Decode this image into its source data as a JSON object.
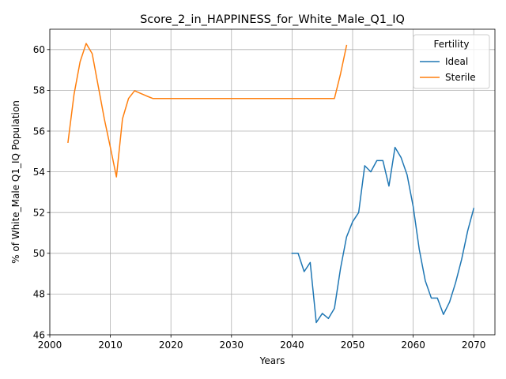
{
  "chart_data": {
    "type": "line",
    "title": "Score_2_in_HAPPINESS_for_White_Male_Q1_IQ",
    "xlabel": "Years",
    "ylabel": "% of White_Male Q1_IQ Population",
    "xlim": [
      2000,
      2073.5
    ],
    "ylim": [
      46,
      61
    ],
    "xticks": [
      2000,
      2010,
      2020,
      2030,
      2040,
      2050,
      2060,
      2070
    ],
    "yticks": [
      46,
      48,
      50,
      52,
      54,
      56,
      58,
      60
    ],
    "grid": true,
    "legend": {
      "title": "Fertility",
      "placement": "top-right"
    },
    "series": [
      {
        "name": "Ideal",
        "color": "#1f77b4",
        "x": [
          2040,
          2041,
          2042,
          2043,
          2044,
          2045,
          2046,
          2047,
          2048,
          2049,
          2050,
          2051,
          2052,
          2053,
          2054,
          2055,
          2056,
          2057,
          2058,
          2059,
          2060,
          2061,
          2062,
          2063,
          2064,
          2065,
          2066,
          2067,
          2068,
          2069,
          2070
        ],
        "y": [
          50.0,
          50.0,
          49.1,
          49.55,
          46.6,
          47.05,
          46.8,
          47.3,
          49.25,
          50.8,
          51.55,
          52.0,
          54.3,
          54.0,
          54.55,
          54.55,
          53.3,
          55.2,
          54.7,
          53.85,
          52.3,
          50.2,
          48.65,
          47.8,
          47.8,
          47.0,
          47.6,
          48.55,
          49.7,
          51.1,
          52.2
        ]
      },
      {
        "name": "Sterile",
        "color": "#ff7f0e",
        "x": [
          2003,
          2004,
          2005,
          2006,
          2007,
          2008,
          2009,
          2010,
          2011,
          2012,
          2013,
          2014,
          2015,
          2016,
          2017,
          2018,
          2019,
          2020,
          2021,
          2022,
          2023,
          2024,
          2025,
          2026,
          2027,
          2028,
          2029,
          2030,
          2031,
          2032,
          2033,
          2034,
          2035,
          2036,
          2037,
          2038,
          2039,
          2040,
          2041,
          2042,
          2043,
          2044,
          2045,
          2046,
          2047,
          2048,
          2049
        ],
        "y": [
          55.45,
          57.8,
          59.4,
          60.3,
          59.8,
          58.2,
          56.6,
          55.2,
          53.75,
          56.6,
          57.6,
          57.98,
          57.85,
          57.72,
          57.6,
          57.6,
          57.6,
          57.6,
          57.6,
          57.6,
          57.6,
          57.6,
          57.6,
          57.6,
          57.6,
          57.6,
          57.6,
          57.6,
          57.6,
          57.6,
          57.6,
          57.6,
          57.6,
          57.6,
          57.6,
          57.6,
          57.6,
          57.6,
          57.6,
          57.6,
          57.6,
          57.6,
          57.6,
          57.6,
          57.6,
          58.8,
          60.2
        ]
      }
    ]
  }
}
